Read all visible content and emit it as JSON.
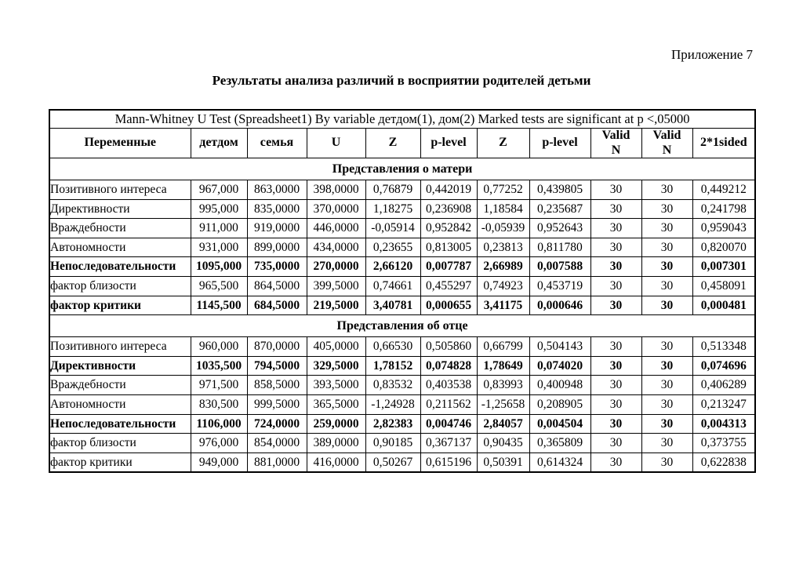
{
  "page": {
    "appendix_label": "Приложение 7",
    "title": "Результаты анализа различий в восприятии родителей детьми"
  },
  "table": {
    "caption": "Mann-Whitney U Test (Spreadsheet1) By variable детдом(1), дом(2) Marked tests are significant at p <,05000",
    "columns": [
      "Переменные",
      "детдом",
      "семья",
      "U",
      "Z",
      "p-level",
      "Z",
      "p-level",
      "Valid\nN",
      "Valid\nN",
      "2*1sided"
    ],
    "sections": [
      {
        "title": "Представления о матери",
        "rows": [
          {
            "label": "Позитивного интереса",
            "bold": false,
            "values": [
              "967,000",
              "863,0000",
              "398,0000",
              "0,76879",
              "0,442019",
              "0,77252",
              "0,439805",
              "30",
              "30",
              "0,449212"
            ]
          },
          {
            "label": "Директивности",
            "bold": false,
            "values": [
              "995,000",
              "835,0000",
              "370,0000",
              "1,18275",
              "0,236908",
              "1,18584",
              "0,235687",
              "30",
              "30",
              "0,241798"
            ]
          },
          {
            "label": "Враждебности",
            "bold": false,
            "values": [
              "911,000",
              "919,0000",
              "446,0000",
              "-0,05914",
              "0,952842",
              "-0,05939",
              "0,952643",
              "30",
              "30",
              "0,959043"
            ]
          },
          {
            "label": "Автономности",
            "bold": false,
            "values": [
              "931,000",
              "899,0000",
              "434,0000",
              "0,23655",
              "0,813005",
              "0,23813",
              "0,811780",
              "30",
              "30",
              "0,820070"
            ]
          },
          {
            "label": "Непоследовательности",
            "bold": true,
            "values": [
              "1095,000",
              "735,0000",
              "270,0000",
              "2,66120",
              "0,007787",
              "2,66989",
              "0,007588",
              "30",
              "30",
              "0,007301"
            ]
          },
          {
            "label": "фактор близости",
            "bold": false,
            "values": [
              "965,500",
              "864,5000",
              "399,5000",
              "0,74661",
              "0,455297",
              "0,74923",
              "0,453719",
              "30",
              "30",
              "0,458091"
            ]
          },
          {
            "label": "фактор критики",
            "bold": true,
            "values": [
              "1145,500",
              "684,5000",
              "219,5000",
              "3,40781",
              "0,000655",
              "3,41175",
              "0,000646",
              "30",
              "30",
              "0,000481"
            ]
          }
        ]
      },
      {
        "title": "Представления об отце",
        "rows": [
          {
            "label": "Позитивного интереса",
            "bold": false,
            "values": [
              "960,000",
              "870,0000",
              "405,0000",
              "0,66530",
              "0,505860",
              "0,66799",
              "0,504143",
              "30",
              "30",
              "0,513348"
            ]
          },
          {
            "label": "Директивности",
            "bold": true,
            "values": [
              "1035,500",
              "794,5000",
              "329,5000",
              "1,78152",
              "0,074828",
              "1,78649",
              "0,074020",
              "30",
              "30",
              "0,074696"
            ]
          },
          {
            "label": "Враждебности",
            "bold": false,
            "values": [
              "971,500",
              "858,5000",
              "393,5000",
              "0,83532",
              "0,403538",
              "0,83993",
              "0,400948",
              "30",
              "30",
              "0,406289"
            ]
          },
          {
            "label": "Автономности",
            "bold": false,
            "values": [
              "830,500",
              "999,5000",
              "365,5000",
              "-1,24928",
              "0,211562",
              "-1,25658",
              "0,208905",
              "30",
              "30",
              "0,213247"
            ]
          },
          {
            "label": "Непоследовательности",
            "bold": true,
            "values": [
              "1106,000",
              "724,0000",
              "259,0000",
              "2,82383",
              "0,004746",
              "2,84057",
              "0,004504",
              "30",
              "30",
              "0,004313"
            ]
          },
          {
            "label": "фактор близости",
            "bold": false,
            "values": [
              "976,000",
              "854,0000",
              "389,0000",
              "0,90185",
              "0,367137",
              "0,90435",
              "0,365809",
              "30",
              "30",
              "0,373755"
            ]
          },
          {
            "label": "фактор критики",
            "bold": false,
            "values": [
              "949,000",
              "881,0000",
              "416,0000",
              "0,50267",
              "0,615196",
              "0,50391",
              "0,614324",
              "30",
              "30",
              "0,622838"
            ]
          }
        ]
      }
    ]
  }
}
